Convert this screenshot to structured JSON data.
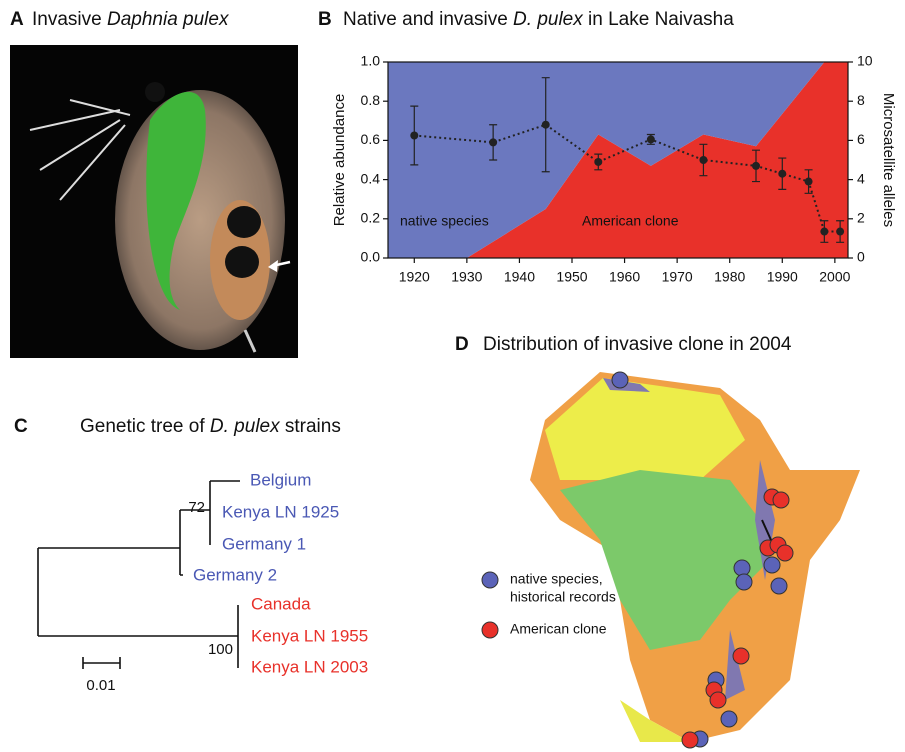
{
  "panel_a": {
    "label": "A",
    "title_parts": [
      {
        "text": "Invasive "
      },
      {
        "text": "Daphnia pulex",
        "italic": true
      }
    ]
  },
  "panel_b": {
    "label": "B",
    "title_parts": [
      {
        "text": "Native and invasive "
      },
      {
        "text": "D. pulex",
        "italic": true
      },
      {
        "text": " in Lake Naivasha"
      }
    ]
  },
  "chart_data": {
    "type": "area",
    "stacked": true,
    "x": [
      1915,
      1930,
      1945,
      1955,
      1965,
      1975,
      1985,
      1998,
      2002.5
    ],
    "xlim": [
      1915,
      2002.5
    ],
    "xticks": [
      1920,
      1930,
      1940,
      1950,
      1960,
      1970,
      1980,
      1990,
      2000
    ],
    "ylim": [
      0,
      1
    ],
    "yticks": [
      {
        "value": 0,
        "label": "0.0"
      },
      0.2,
      0.4,
      0.6,
      0.8,
      {
        "value": 1,
        "label": "1.0"
      }
    ],
    "y2lim": [
      0,
      10
    ],
    "y2ticks": [
      0,
      2,
      4,
      6,
      8,
      10
    ],
    "ylabel": "Relative abundance",
    "y2label": "Microsatellite alleles",
    "series": [
      {
        "name": "American clone",
        "color": "#e8312a",
        "values": [
          0,
          0,
          0.25,
          0.63,
          0.47,
          0.63,
          0.57,
          1,
          1
        ]
      },
      {
        "name": "native species",
        "color": "#6b78bf",
        "values": [
          1,
          1,
          0.75,
          0.37,
          0.53,
          0.37,
          0.43,
          0,
          0
        ]
      },
      {
        "type": "line",
        "axis": "y2",
        "color": "#222",
        "linestyle": "dotted",
        "x": [
          1920,
          1935,
          1945,
          1955,
          1965,
          1975,
          1985,
          1990,
          1995,
          1998,
          2001
        ],
        "values": [
          6.25,
          5.9,
          6.8,
          4.9,
          6.05,
          5.0,
          4.7,
          4.3,
          3.9,
          1.35,
          1.35
        ],
        "errors": [
          1.5,
          0.9,
          2.4,
          0.4,
          0.25,
          0.8,
          0.8,
          0.8,
          0.6,
          0.55,
          0.55
        ]
      }
    ]
  },
  "panel_c": {
    "label": "C",
    "title_parts": [
      {
        "text": "Genetic tree of "
      },
      {
        "text": "D. pulex",
        "italic": true
      },
      {
        "text": " strains"
      }
    ],
    "leaves": [
      {
        "label": "Belgium",
        "color": "#4a58b4"
      },
      {
        "label": "Kenya LN 1925",
        "color": "#4a58b4"
      },
      {
        "label": "Germany 1",
        "color": "#4a58b4"
      },
      {
        "label": "Germany 2",
        "color": "#4a58b4"
      },
      {
        "label": "Canada",
        "color": "#e8312a"
      },
      {
        "label": "Kenya LN 1955",
        "color": "#e8312a"
      },
      {
        "label": "Kenya LN 2003",
        "color": "#e8312a"
      }
    ],
    "support": [
      "72",
      "100"
    ],
    "scale": "0.01"
  },
  "panel_d": {
    "label": "D",
    "title": "Distribution of invasive clone in 2004",
    "legend": [
      {
        "lines": [
          "native species,",
          "historical records"
        ],
        "color": "#5b63b8"
      },
      {
        "lines": [
          "American clone"
        ],
        "color": "#e8312a"
      }
    ]
  }
}
